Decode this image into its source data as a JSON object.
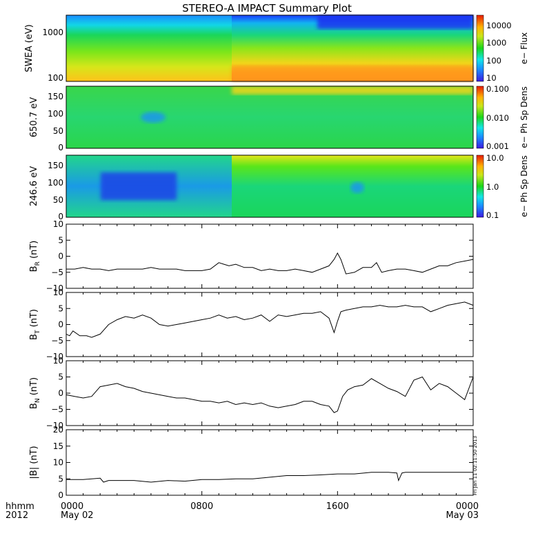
{
  "title": "STEREO-A IMPACT Summary Plot",
  "footer": {
    "left_top": "hhmm",
    "left_bottom": "2012"
  },
  "timestamp_text": "Fri Jan 11 02:11:50 2013",
  "x_axis": {
    "range_hours": [
      0,
      24
    ],
    "ticks": [
      {
        "hour": 0,
        "top": "0000",
        "bottom": "May 02"
      },
      {
        "hour": 8,
        "top": "0800",
        "bottom": ""
      },
      {
        "hour": 16,
        "top": "1600",
        "bottom": ""
      },
      {
        "hour": 24,
        "top": "0000",
        "bottom": "May 03"
      }
    ]
  },
  "colors": {
    "line": "#000000",
    "axis": "#000000"
  },
  "chart_data": [
    {
      "type": "heatmap",
      "id": "swea",
      "ylabel": "SWEA (eV)",
      "y_scale": "log",
      "yticks": [
        "1000",
        "100"
      ],
      "colorbar": {
        "label": "e− Flux",
        "scale": "log",
        "ticks": [
          "10000",
          "1000",
          "100",
          "10"
        ]
      },
      "description_values": {
        "low_energy_flux_high_after_hour": 9.5,
        "high_energy_flux_low_after_hour": 15
      }
    },
    {
      "type": "heatmap",
      "id": "pad650",
      "ylabel": "650.7 eV",
      "ylim": [
        0,
        180
      ],
      "yticks": [
        "150",
        "100",
        "50",
        "0"
      ],
      "colorbar": {
        "label": "e− Ph Sp Dens",
        "scale": "log",
        "ticks": [
          "0.100",
          "0.010",
          "0.001"
        ]
      }
    },
    {
      "type": "heatmap",
      "id": "pad246",
      "ylabel": "246.6 eV",
      "ylim": [
        0,
        180
      ],
      "yticks": [
        "150",
        "100",
        "50",
        "0"
      ],
      "colorbar": {
        "label": "e− Ph Sp Dens",
        "scale": "log",
        "ticks": [
          "10.0",
          "1.0",
          "0.1"
        ]
      }
    },
    {
      "type": "line",
      "id": "br",
      "ylabel": "B",
      "ysub": "R",
      "yunit": "(nT)",
      "ylim": [
        -10,
        10
      ],
      "yticks": [
        "10",
        "5",
        "0",
        "−5",
        "−10"
      ],
      "x": [
        0,
        0.5,
        1,
        1.5,
        2,
        2.5,
        3,
        3.5,
        4,
        4.5,
        5,
        5.5,
        6,
        6.5,
        7,
        7.5,
        8,
        8.5,
        9,
        9.3,
        9.6,
        10,
        10.5,
        11,
        11.5,
        12,
        12.5,
        13,
        13.5,
        14,
        14.5,
        15,
        15.5,
        15.8,
        16,
        16.2,
        16.5,
        17,
        17.5,
        18,
        18.3,
        18.6,
        19,
        19.5,
        20,
        20.5,
        21,
        21.5,
        22,
        22.5,
        23,
        23.5,
        24
      ],
      "y": [
        -4,
        -4,
        -3.5,
        -4,
        -4,
        -4.5,
        -4,
        -4,
        -4,
        -4,
        -3.5,
        -4,
        -4,
        -4,
        -4.5,
        -4.5,
        -4.5,
        -4,
        -2,
        -2.5,
        -3,
        -2.5,
        -3.5,
        -3.5,
        -4.5,
        -4,
        -4.5,
        -4.5,
        -4,
        -4.5,
        -5,
        -4,
        -3,
        -1,
        1,
        -1,
        -5.5,
        -5,
        -3.5,
        -3.5,
        -2,
        -5,
        -4.5,
        -4,
        -4,
        -4.5,
        -5,
        -4,
        -3,
        -3,
        -2,
        -1.5,
        -1
      ]
    },
    {
      "type": "line",
      "id": "bt",
      "ylabel": "B",
      "ysub": "T",
      "yunit": "(nT)",
      "ylim": [
        -10,
        10
      ],
      "yticks": [
        "10",
        "5",
        "0",
        "−5",
        "−10"
      ],
      "x": [
        0,
        0.2,
        0.4,
        0.8,
        1.2,
        1.5,
        2,
        2.5,
        3,
        3.5,
        4,
        4.5,
        5,
        5.5,
        6,
        6.5,
        7,
        7.5,
        8,
        8.5,
        9,
        9.5,
        10,
        10.5,
        11,
        11.5,
        12,
        12.5,
        13,
        13.5,
        14,
        14.5,
        15,
        15.5,
        15.8,
        16,
        16.2,
        16.5,
        17,
        17.5,
        18,
        18.5,
        19,
        19.5,
        20,
        20.5,
        21,
        21.5,
        22,
        22.5,
        23,
        23.5,
        24
      ],
      "y": [
        -3,
        -3.5,
        -2,
        -3.5,
        -3.5,
        -4,
        -3,
        0,
        1.5,
        2.5,
        2,
        3,
        2,
        0,
        -0.5,
        0,
        0.5,
        1,
        1.5,
        2,
        3,
        2,
        2.5,
        1.5,
        2,
        3,
        1,
        3,
        2.5,
        3,
        3.5,
        3.5,
        4,
        2,
        -2.5,
        1,
        4,
        4.5,
        5,
        5.5,
        5.5,
        6,
        5.5,
        5.5,
        6,
        5.5,
        5.5,
        4,
        5,
        6,
        6.5,
        7,
        6
      ]
    },
    {
      "type": "line",
      "id": "bn",
      "ylabel": "B",
      "ysub": "N",
      "yunit": "(nT)",
      "ylim": [
        -10,
        10
      ],
      "yticks": [
        "10",
        "5",
        "0",
        "−5",
        "−10"
      ],
      "x": [
        0,
        0.5,
        1,
        1.5,
        2,
        2.5,
        3,
        3.5,
        4,
        4.5,
        5,
        5.5,
        6,
        6.5,
        7,
        7.5,
        8,
        8.5,
        9,
        9.5,
        10,
        10.5,
        11,
        11.5,
        12,
        12.5,
        13,
        13.5,
        14,
        14.5,
        15,
        15.5,
        15.8,
        16,
        16.3,
        16.6,
        17,
        17.5,
        18,
        18.5,
        19,
        19.5,
        20,
        20.5,
        21,
        21.5,
        22,
        22.5,
        23,
        23.5,
        24
      ],
      "y": [
        -0.5,
        -1,
        -1.5,
        -1,
        2,
        2.5,
        3,
        2,
        1.5,
        0.5,
        0,
        -0.5,
        -1,
        -1.5,
        -1.5,
        -2,
        -2.5,
        -2.5,
        -3,
        -2.5,
        -3.5,
        -3,
        -3.5,
        -3,
        -4,
        -4.5,
        -4,
        -3.5,
        -2.5,
        -2.5,
        -3.5,
        -4,
        -6,
        -5.5,
        -1,
        1,
        2,
        2.5,
        4.5,
        3,
        1.5,
        0.5,
        -1,
        4,
        5,
        1,
        3,
        2,
        0,
        -2,
        5
      ]
    },
    {
      "type": "line",
      "id": "bmag",
      "ylabel": "|B|",
      "yunit": "(nT)",
      "ylim": [
        0,
        20
      ],
      "yticks": [
        "20",
        "15",
        "10",
        "5",
        "0"
      ],
      "x": [
        0,
        1,
        2,
        2.2,
        2.5,
        3,
        4,
        5,
        6,
        7,
        8,
        9,
        10,
        11,
        12,
        13,
        14,
        15,
        16,
        17,
        18,
        19,
        19.5,
        19.6,
        19.8,
        20,
        21,
        22,
        23,
        24
      ],
      "y": [
        4.8,
        4.8,
        5.2,
        4,
        4.5,
        4.5,
        4.5,
        4,
        4.5,
        4.3,
        4.8,
        4.8,
        5,
        5,
        5.5,
        6,
        6,
        6.2,
        6.5,
        6.5,
        7,
        7,
        6.8,
        4.5,
        6.8,
        7,
        7,
        7,
        7,
        7
      ]
    }
  ]
}
